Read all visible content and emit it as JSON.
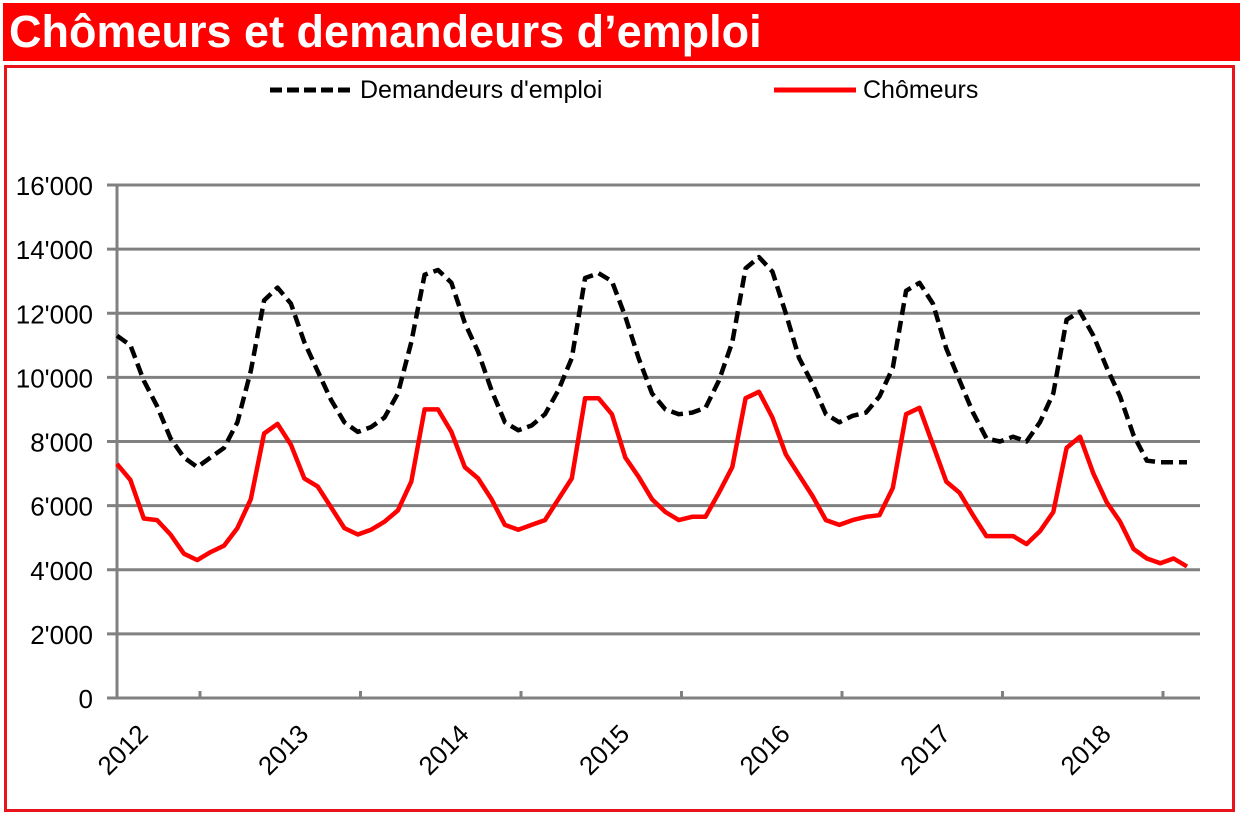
{
  "header": {
    "title": "Chômeurs et demandeurs d’emploi"
  },
  "colors": {
    "title_bg": "#fe0000",
    "frame": "#e8141c",
    "grid": "#808080",
    "demandeurs": "#000000",
    "chomeurs": "#fe0000"
  },
  "legend": {
    "items": [
      {
        "label": "Demandeurs d'emploi",
        "style": "dashed",
        "color": "#000000"
      },
      {
        "label": "Chômeurs",
        "style": "solid",
        "color": "#fe0000"
      }
    ]
  },
  "chart_data": {
    "type": "line",
    "title": "Chômeurs et demandeurs d’emploi",
    "xlabel": "",
    "ylabel": "",
    "ylim": [
      0,
      16000
    ],
    "yticks": [
      0,
      2000,
      4000,
      6000,
      8000,
      10000,
      12000,
      14000,
      16000
    ],
    "ytick_labels": [
      "0",
      "2'000",
      "4'000",
      "6'000",
      "8'000",
      "10'000",
      "12'000",
      "14'000",
      "16'000"
    ],
    "xtick_labels": [
      "2012",
      "2013",
      "2014",
      "2015",
      "2016",
      "2017",
      "2018"
    ],
    "x_period": "monthly, Jan 2012 – Sep 2018",
    "grid": "horizontal",
    "legend_position": "top",
    "series": [
      {
        "name": "Demandeurs d'emploi",
        "style": "dashed",
        "color": "#000000",
        "values": [
          11300,
          11000,
          9900,
          9100,
          8100,
          7500,
          7200,
          7500,
          7800,
          8600,
          10200,
          12400,
          12800,
          12300,
          11100,
          10200,
          9300,
          8600,
          8300,
          8450,
          8750,
          9500,
          11100,
          13200,
          13350,
          12950,
          11700,
          10800,
          9600,
          8600,
          8350,
          8500,
          8850,
          9600,
          10600,
          13100,
          13250,
          13000,
          11900,
          10600,
          9500,
          9000,
          8850,
          8900,
          9050,
          9900,
          11100,
          13400,
          13750,
          13300,
          12000,
          10600,
          9800,
          8850,
          8600,
          8800,
          8900,
          9400,
          10300,
          12700,
          12950,
          12300,
          10900,
          9900,
          8900,
          8100,
          8000,
          8150,
          8000,
          8600,
          9500,
          11800,
          12050,
          11300,
          10300,
          9400,
          8200,
          7400,
          7350,
          7350,
          7350
        ]
      },
      {
        "name": "Chômeurs",
        "style": "solid",
        "color": "#fe0000",
        "values": [
          7300,
          6800,
          5600,
          5550,
          5100,
          4500,
          4300,
          4550,
          4750,
          5300,
          6200,
          8250,
          8550,
          7900,
          6850,
          6600,
          5950,
          5300,
          5100,
          5250,
          5500,
          5850,
          6750,
          9000,
          9000,
          8300,
          7200,
          6850,
          6200,
          5400,
          5250,
          5400,
          5550,
          6200,
          6850,
          9350,
          9350,
          8850,
          7500,
          6900,
          6200,
          5800,
          5550,
          5650,
          5650,
          6400,
          7200,
          9350,
          9550,
          8750,
          7600,
          6950,
          6300,
          5550,
          5400,
          5550,
          5650,
          5700,
          6550,
          8850,
          9050,
          7900,
          6750,
          6400,
          5700,
          5050,
          5050,
          5050,
          4800,
          5200,
          5800,
          7800,
          8150,
          7000,
          6100,
          5500,
          4650,
          4350,
          4200,
          4350,
          4100
        ]
      }
    ]
  }
}
